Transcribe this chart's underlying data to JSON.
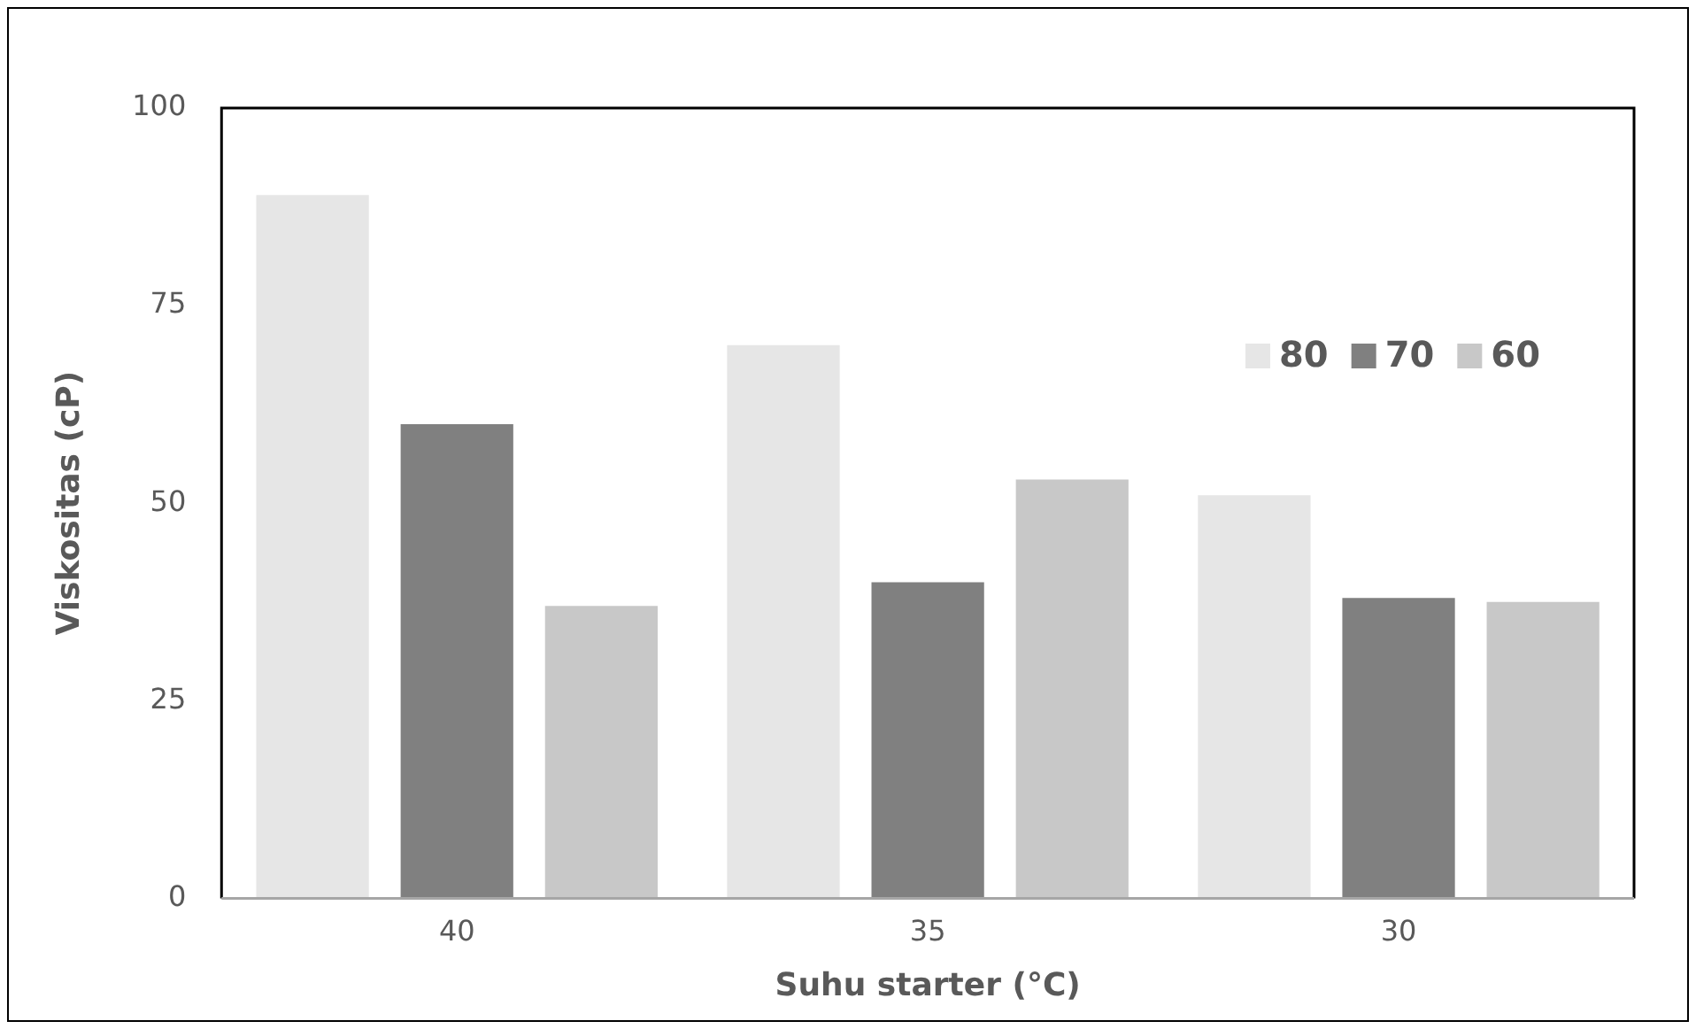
{
  "chart_data": {
    "type": "bar",
    "xlabel": "Suhu starter (°C)",
    "ylabel": "Viskositas (cP)",
    "categories": [
      "40",
      "35",
      "30"
    ],
    "series": [
      {
        "name": "80",
        "color": "#e6e6e6",
        "values": [
          89,
          70,
          51
        ]
      },
      {
        "name": "70",
        "color": "#808080",
        "values": [
          60,
          40,
          38
        ]
      },
      {
        "name": "60",
        "color": "#c8c8c8",
        "values": [
          37,
          53,
          37.5
        ]
      }
    ],
    "ylim": [
      0,
      100
    ],
    "yticks": [
      0,
      25,
      50,
      75,
      100
    ],
    "grid": false,
    "legend": "top right"
  }
}
